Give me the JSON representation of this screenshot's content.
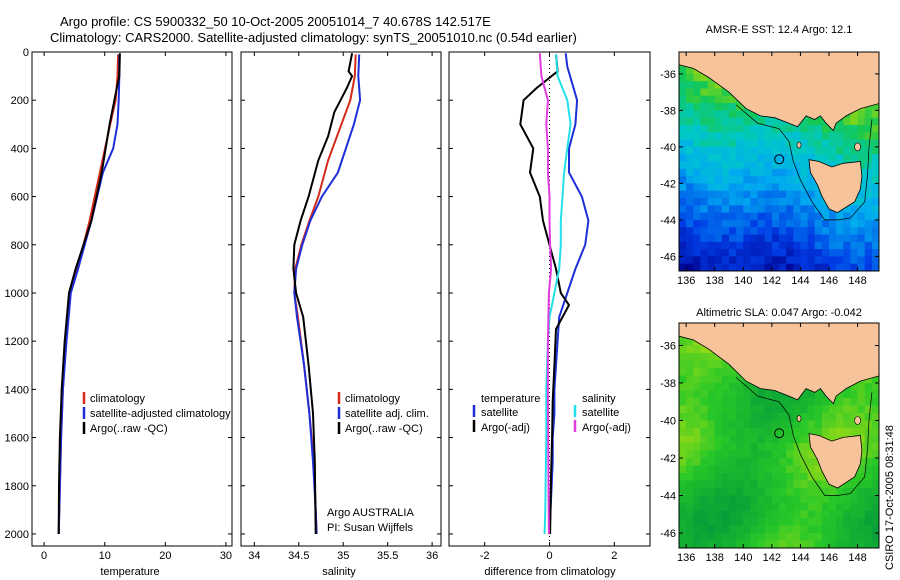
{
  "header": {
    "line1": "Argo profile: CS 5900332_50 10-Oct-2005 20051014_7 40.678S 142.517E",
    "line2": "Climatology: CARS2000. Satellite-adjusted climatology: synTS_20051010.nc (0.54d earlier)"
  },
  "colors": {
    "climatology": "#d42a1a",
    "satellite": "#1c2fd8",
    "argo": "#000000",
    "argo_salinity_diff": "#e03ce0",
    "satellite_salinity_diff": "#23e0e8",
    "land": "#f7c39a"
  },
  "chart_data": [
    {
      "type": "line",
      "xlabel": "temperature",
      "ylabel": "",
      "xlim": [
        -2,
        31
      ],
      "ylim": [
        2050,
        0
      ],
      "xticks": [
        0,
        10,
        20,
        30
      ],
      "yticks": [
        0,
        200,
        400,
        600,
        800,
        1000,
        1200,
        1400,
        1600,
        1800,
        2000
      ],
      "legend": [
        "climatology",
        "satellite-adjusted climatology",
        "Argo(..raw -QC)"
      ],
      "series": [
        {
          "name": "climatology",
          "color_key": "climatology",
          "x": [
            12.2,
            12.1,
            11.8,
            10.9,
            9.2,
            7.5,
            6.5,
            5.4,
            4.3,
            3.6,
            3.1,
            2.8,
            2.6,
            2.5,
            2.4
          ],
          "y": [
            10,
            100,
            200,
            300,
            500,
            700,
            800,
            900,
            1000,
            1200,
            1400,
            1600,
            1800,
            1900,
            2000
          ]
        },
        {
          "name": "satellite-adjusted climatology",
          "color_key": "satellite",
          "x": [
            12.4,
            12.4,
            12.3,
            12.1,
            11.4,
            9.7,
            7.8,
            6.7,
            5.6,
            4.4,
            3.7,
            3.1,
            2.8,
            2.6,
            2.5,
            2.4
          ],
          "y": [
            10,
            100,
            200,
            300,
            400,
            500,
            700,
            800,
            900,
            1000,
            1200,
            1400,
            1600,
            1800,
            1900,
            2000
          ]
        },
        {
          "name": "Argo(..raw -QC)",
          "color_key": "argo",
          "x": [
            12.5,
            12.4,
            12.0,
            11.6,
            10.8,
            9.5,
            7.8,
            6.5,
            5.2,
            4.1,
            3.4,
            2.9,
            2.6,
            2.45,
            2.4
          ],
          "y": [
            5,
            100,
            150,
            200,
            300,
            500,
            700,
            800,
            900,
            1000,
            1200,
            1400,
            1600,
            1800,
            2000
          ]
        }
      ]
    },
    {
      "type": "line",
      "xlabel": "salinity",
      "ylabel": "",
      "xlim": [
        33.85,
        36.1
      ],
      "ylim": [
        2050,
        0
      ],
      "xticks": [
        34,
        34.5,
        35,
        35.5,
        36
      ],
      "xticklabels": [
        "34",
        "34.5",
        "35",
        "35.5",
        "36"
      ],
      "legend": [
        "climatology",
        "satellite adj. clim.",
        "Argo(..raw -QC)"
      ],
      "annotation": [
        "Argo AUSTRALIA",
        "PI: Susan Wijffels"
      ],
      "series": [
        {
          "name": "climatology",
          "color_key": "climatology",
          "x": [
            35.14,
            35.13,
            35.08,
            34.98,
            34.83,
            34.72,
            34.62,
            34.53,
            34.46,
            34.45,
            34.49,
            34.56,
            34.62,
            34.67,
            34.69,
            34.7
          ],
          "y": [
            10,
            100,
            200,
            300,
            450,
            600,
            700,
            800,
            900,
            1000,
            1100,
            1300,
            1500,
            1700,
            1900,
            2000
          ]
        },
        {
          "name": "satellite adj. clim.",
          "color_key": "satellite",
          "x": [
            35.18,
            35.17,
            35.19,
            35.12,
            34.94,
            34.76,
            34.63,
            34.54,
            34.47,
            34.45,
            34.48,
            34.56,
            34.62,
            34.66,
            34.69,
            34.7
          ],
          "y": [
            10,
            100,
            200,
            300,
            500,
            600,
            700,
            800,
            900,
            1000,
            1100,
            1300,
            1500,
            1700,
            1900,
            2000
          ]
        },
        {
          "name": "Argo(..raw -QC)",
          "color_key": "argo",
          "x": [
            35.1,
            35.06,
            35.1,
            35.04,
            34.9,
            34.83,
            34.72,
            34.61,
            34.52,
            34.45,
            34.44,
            34.47,
            34.55,
            34.61,
            34.66,
            34.68,
            34.69
          ],
          "y": [
            5,
            80,
            100,
            150,
            250,
            350,
            450,
            600,
            700,
            800,
            900,
            1000,
            1100,
            1300,
            1500,
            1700,
            2000
          ]
        }
      ]
    },
    {
      "type": "line",
      "xlabel": "difference from climatology",
      "ylabel": "",
      "xlim": [
        -3.1,
        3.1
      ],
      "ylim": [
        2050,
        0
      ],
      "xticks": [
        -2,
        0,
        2
      ],
      "legend_temperature": {
        "heading": "temperature",
        "items": [
          "satellite",
          "Argo(-adj)"
        ]
      },
      "legend_salinity": {
        "heading": "salinity",
        "items": [
          "satellite",
          "Argo(-adj)"
        ]
      },
      "series": [
        {
          "name": "temperature satellite",
          "color_key": "satellite",
          "x": [
            0.5,
            0.55,
            0.85,
            0.8,
            0.6,
            0.6,
            1.0,
            1.2,
            1.1,
            0.8,
            0.55,
            0.3,
            0.25,
            0.2,
            0.15,
            0.15,
            0.1,
            0.1,
            0.05,
            0.0
          ],
          "y": [
            5,
            60,
            200,
            300,
            400,
            500,
            600,
            700,
            800,
            900,
            1000,
            1100,
            1200,
            1300,
            1400,
            1500,
            1600,
            1700,
            1850,
            2000
          ]
        },
        {
          "name": "temperature Argo(-adj)",
          "color_key": "argo",
          "x": [
            0.2,
            0.25,
            -0.4,
            -0.8,
            -0.9,
            -0.5,
            -0.6,
            -0.3,
            -0.2,
            0.0,
            0.2,
            0.35,
            0.6,
            0.2,
            0.15,
            0.1,
            0.08,
            0.05,
            0.03,
            0.02
          ],
          "y": [
            10,
            80,
            150,
            200,
            300,
            400,
            500,
            600,
            700,
            800,
            900,
            1000,
            1050,
            1150,
            1300,
            1450,
            1600,
            1750,
            1900,
            2000
          ]
        },
        {
          "name": "salinity satellite",
          "color_key": "satellite_salinity_diff",
          "x": [
            0.2,
            0.25,
            0.55,
            0.65,
            0.55,
            0.45,
            0.4,
            0.35,
            0.35,
            0.3,
            0.15,
            0.0,
            -0.05,
            -0.1,
            -0.1,
            -0.12,
            -0.13,
            -0.15
          ],
          "y": [
            10,
            100,
            200,
            300,
            400,
            500,
            600,
            700,
            800,
            900,
            1000,
            1100,
            1200,
            1400,
            1600,
            1800,
            1900,
            2000
          ]
        },
        {
          "name": "salinity Argo(-adj)",
          "color_key": "argo_salinity_diff",
          "x": [
            -0.3,
            -0.25,
            -0.05,
            -0.1,
            -0.05,
            -0.05,
            0.0,
            0.0,
            0.02,
            0.05,
            -0.02,
            -0.05,
            -0.05,
            -0.04,
            -0.03,
            -0.02
          ],
          "y": [
            5,
            100,
            200,
            300,
            400,
            500,
            600,
            700,
            800,
            900,
            1000,
            1200,
            1400,
            1600,
            1800,
            2000
          ]
        }
      ]
    },
    {
      "type": "heatmap",
      "title": "AMSR-E SST: 12.4  Argo: 12.1",
      "xlim": [
        135.5,
        149.5
      ],
      "ylim": [
        -46.8,
        -34.8
      ],
      "xticks": [
        136,
        138,
        140,
        142,
        144,
        146,
        148
      ],
      "yticks": [
        -36,
        -38,
        -40,
        -42,
        -44,
        -46
      ],
      "marker": {
        "lon": 142.517,
        "lat": -40.678
      }
    },
    {
      "type": "heatmap",
      "title": "Altimetric SLA: 0.047  Argo: -0.042",
      "xlim": [
        135.5,
        149.5
      ],
      "ylim": [
        -46.8,
        -34.8
      ],
      "xticks": [
        136,
        138,
        140,
        142,
        144,
        146,
        148
      ],
      "yticks": [
        -36,
        -38,
        -40,
        -42,
        -44,
        -46
      ],
      "marker": {
        "lon": 142.517,
        "lat": -40.678
      }
    }
  ],
  "credit": "CSIRO 17-Oct-2005 08:31:48"
}
